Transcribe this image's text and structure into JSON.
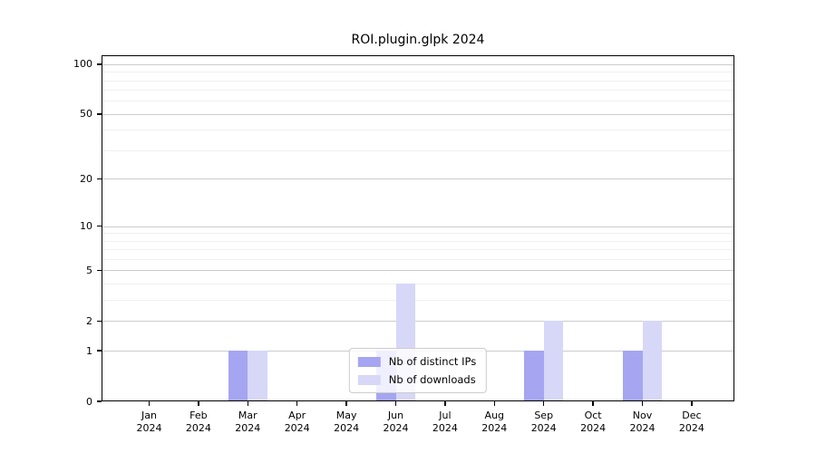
{
  "chart_data": {
    "type": "bar",
    "title": "ROI.plugin.glpk 2024",
    "months": [
      "Jan",
      "Feb",
      "Mar",
      "Apr",
      "May",
      "Jun",
      "Jul",
      "Aug",
      "Sep",
      "Oct",
      "Nov",
      "Dec"
    ],
    "year": "2024",
    "series": [
      {
        "name": "Nb of distinct IPs",
        "color": "#a5a5f1",
        "values": [
          0,
          0,
          1,
          0,
          0,
          1,
          0,
          0,
          1,
          0,
          1,
          0
        ]
      },
      {
        "name": "Nb of downloads",
        "color": "#d7d7f8",
        "values": [
          0,
          0,
          1,
          0,
          0,
          4,
          0,
          0,
          2,
          0,
          2,
          0
        ]
      }
    ],
    "y_axis": {
      "scale": "log1p",
      "ticks": [
        0,
        1,
        2,
        5,
        10,
        20,
        50,
        100
      ],
      "minor_ticks": [
        3,
        4,
        6,
        7,
        8,
        9,
        30,
        40,
        60,
        70,
        80,
        90
      ],
      "range": [
        0,
        113
      ]
    },
    "legend_position": "lower center",
    "grid": true,
    "colors": {
      "major_grid": "#cccccc",
      "minor_grid": "#f0f0f0",
      "spine": "#000000",
      "background": "#ffffff"
    }
  }
}
